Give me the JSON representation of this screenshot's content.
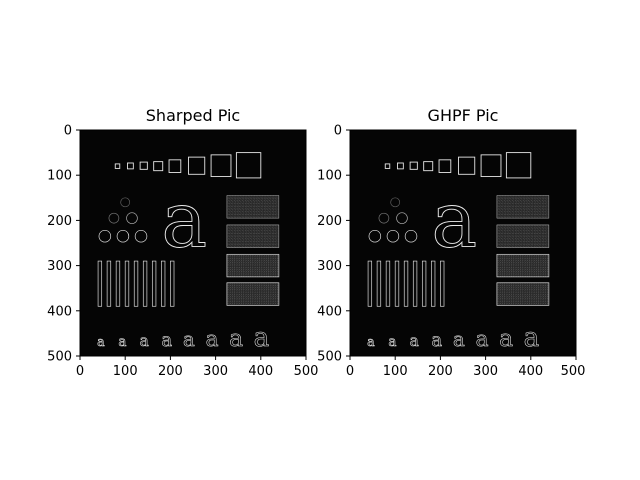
{
  "panels": [
    {
      "title": "Sharped Pic",
      "x_ticks": [
        "0",
        "100",
        "200",
        "300",
        "400",
        "500"
      ],
      "y_ticks": [
        "0",
        "100",
        "200",
        "300",
        "400",
        "500"
      ]
    },
    {
      "title": "GHPF Pic",
      "x_ticks": [
        "0",
        "100",
        "200",
        "300",
        "400",
        "500"
      ],
      "y_ticks": [
        "0",
        "100",
        "200",
        "300",
        "400",
        "500"
      ]
    }
  ],
  "colors": {
    "image_background": "#050505",
    "edge_highlight": "#e6e6e6",
    "noise_fill": "#3a3a3a"
  }
}
